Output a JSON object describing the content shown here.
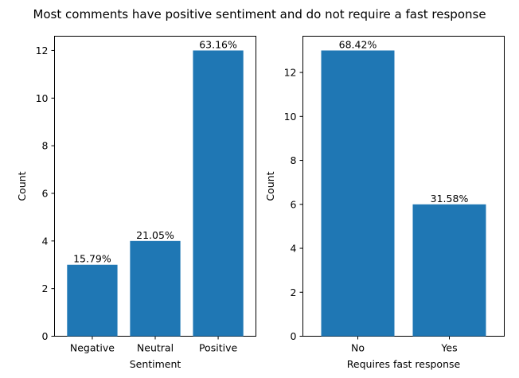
{
  "title": "Most comments have positive sentiment and do not require a fast response",
  "colors": {
    "bar": "#1f77b4"
  },
  "chart_data": [
    {
      "type": "bar",
      "categories": [
        "Negative",
        "Neutral",
        "Positive"
      ],
      "values": [
        3,
        4,
        12
      ],
      "data_labels": [
        "15.79%",
        "21.05%",
        "63.16%"
      ],
      "xlabel": "Sentiment",
      "ylabel": "Count",
      "ylim": [
        0,
        12.6
      ],
      "yticks": [
        0,
        2,
        4,
        6,
        8,
        10,
        12
      ],
      "grid": false
    },
    {
      "type": "bar",
      "categories": [
        "No",
        "Yes"
      ],
      "values": [
        13,
        6
      ],
      "data_labels": [
        "68.42%",
        "31.58%"
      ],
      "xlabel": "Requires fast response",
      "ylabel": "Count",
      "ylim": [
        0,
        13.65
      ],
      "yticks": [
        0,
        2,
        4,
        6,
        8,
        10,
        12
      ],
      "grid": false
    }
  ]
}
